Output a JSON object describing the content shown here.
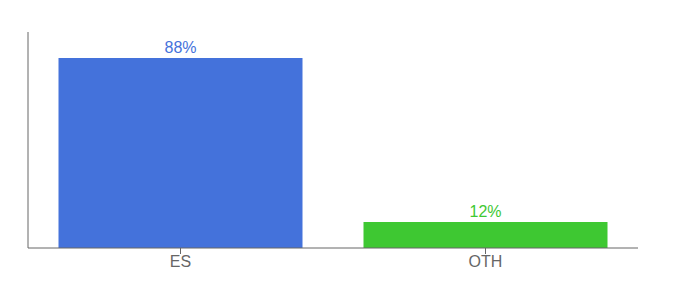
{
  "chart_data": {
    "type": "bar",
    "categories": [
      "ES",
      "OTH"
    ],
    "values": [
      88,
      12
    ],
    "colors": [
      "#4472db",
      "#3ec832"
    ],
    "ylim": [
      0,
      100
    ],
    "data_labels": true,
    "value_labels": [
      "88%",
      "12%"
    ],
    "tick_labels": "x",
    "grid": false
  }
}
